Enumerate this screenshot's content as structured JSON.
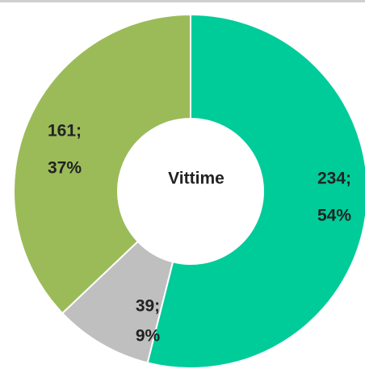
{
  "chart_data": {
    "type": "donut",
    "center_label": "Vittime",
    "categories": [
      null,
      null,
      null
    ],
    "values": [
      234,
      39,
      161
    ],
    "value_labels": [
      "234;",
      "39;",
      "161;"
    ],
    "percent_labels": [
      "54%",
      "9%",
      "37%"
    ],
    "colors": [
      "#00cc99",
      "#bfbfbf",
      "#9bbb59"
    ]
  }
}
